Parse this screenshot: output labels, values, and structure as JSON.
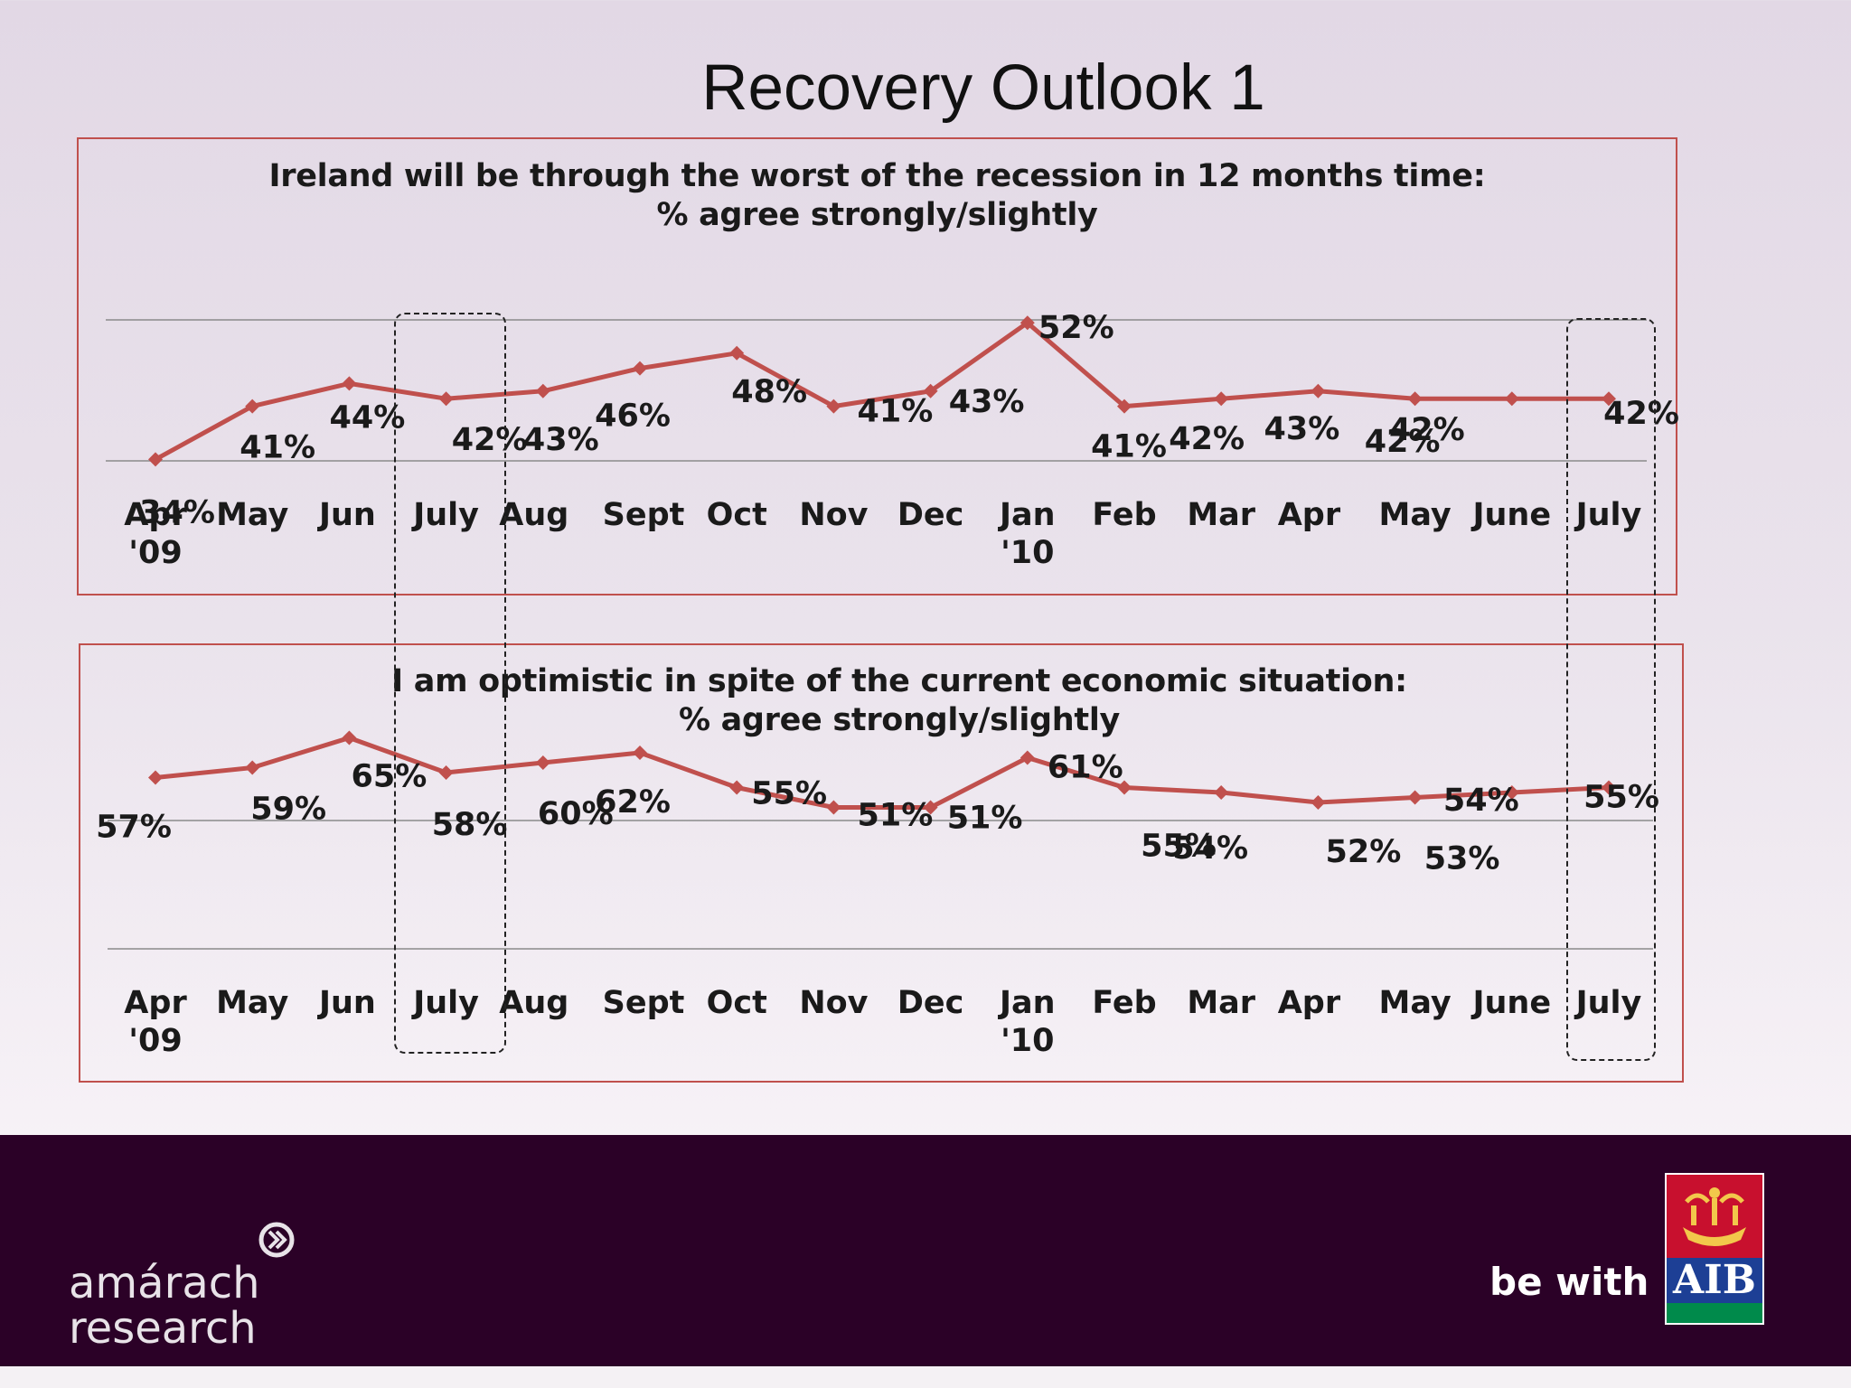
{
  "page": {
    "title": "Recovery Outlook 1"
  },
  "chart_data": [
    {
      "type": "line",
      "title_line1": "Ireland will be through the worst of the recession in 12 months time:",
      "title_line2": "% agree strongly/slightly",
      "categories": [
        "Apr '09",
        "May",
        "Jun",
        "July",
        "Aug",
        "Sept",
        "Oct",
        "Nov",
        "Dec",
        "Jan '10",
        "Feb",
        "Mar",
        "Apr",
        "May",
        "June",
        "July"
      ],
      "values": [
        34,
        41,
        44,
        42,
        43,
        46,
        48,
        41,
        43,
        52,
        41,
        42,
        43,
        42,
        42,
        42
      ],
      "data_labels": [
        "34%",
        "41%",
        "44%",
        "42%",
        "43%",
        "46%",
        "48%",
        "41%",
        "43%",
        "52%",
        "41%",
        "42%",
        "43%",
        "42%",
        "42%",
        "42%"
      ],
      "series_color": "#c0504d",
      "grid": false
    },
    {
      "type": "line",
      "title_line1": "I am optimistic in spite of the current economic situation:",
      "title_line2": "% agree strongly/slightly",
      "categories": [
        "Apr '09",
        "May",
        "Jun",
        "July",
        "Aug",
        "Sept",
        "Oct",
        "Nov",
        "Dec",
        "Jan '10",
        "Feb",
        "Mar",
        "Apr",
        "May",
        "June",
        "July"
      ],
      "values": [
        57,
        59,
        65,
        58,
        60,
        62,
        55,
        51,
        51,
        61,
        55,
        54,
        52,
        53,
        54,
        55
      ],
      "data_labels": [
        "57%",
        "59%",
        "65%",
        "58%",
        "60%",
        "62%",
        "55%",
        "51%",
        "51%",
        "61%",
        "55%",
        "54%",
        "52%",
        "53%",
        "54%",
        "55%"
      ],
      "series_color": "#c0504d",
      "grid": false
    }
  ],
  "footer": {
    "amarach_line1": "amárach",
    "amarach_line2": "research",
    "be_with": "be with",
    "aib": "AIB"
  }
}
